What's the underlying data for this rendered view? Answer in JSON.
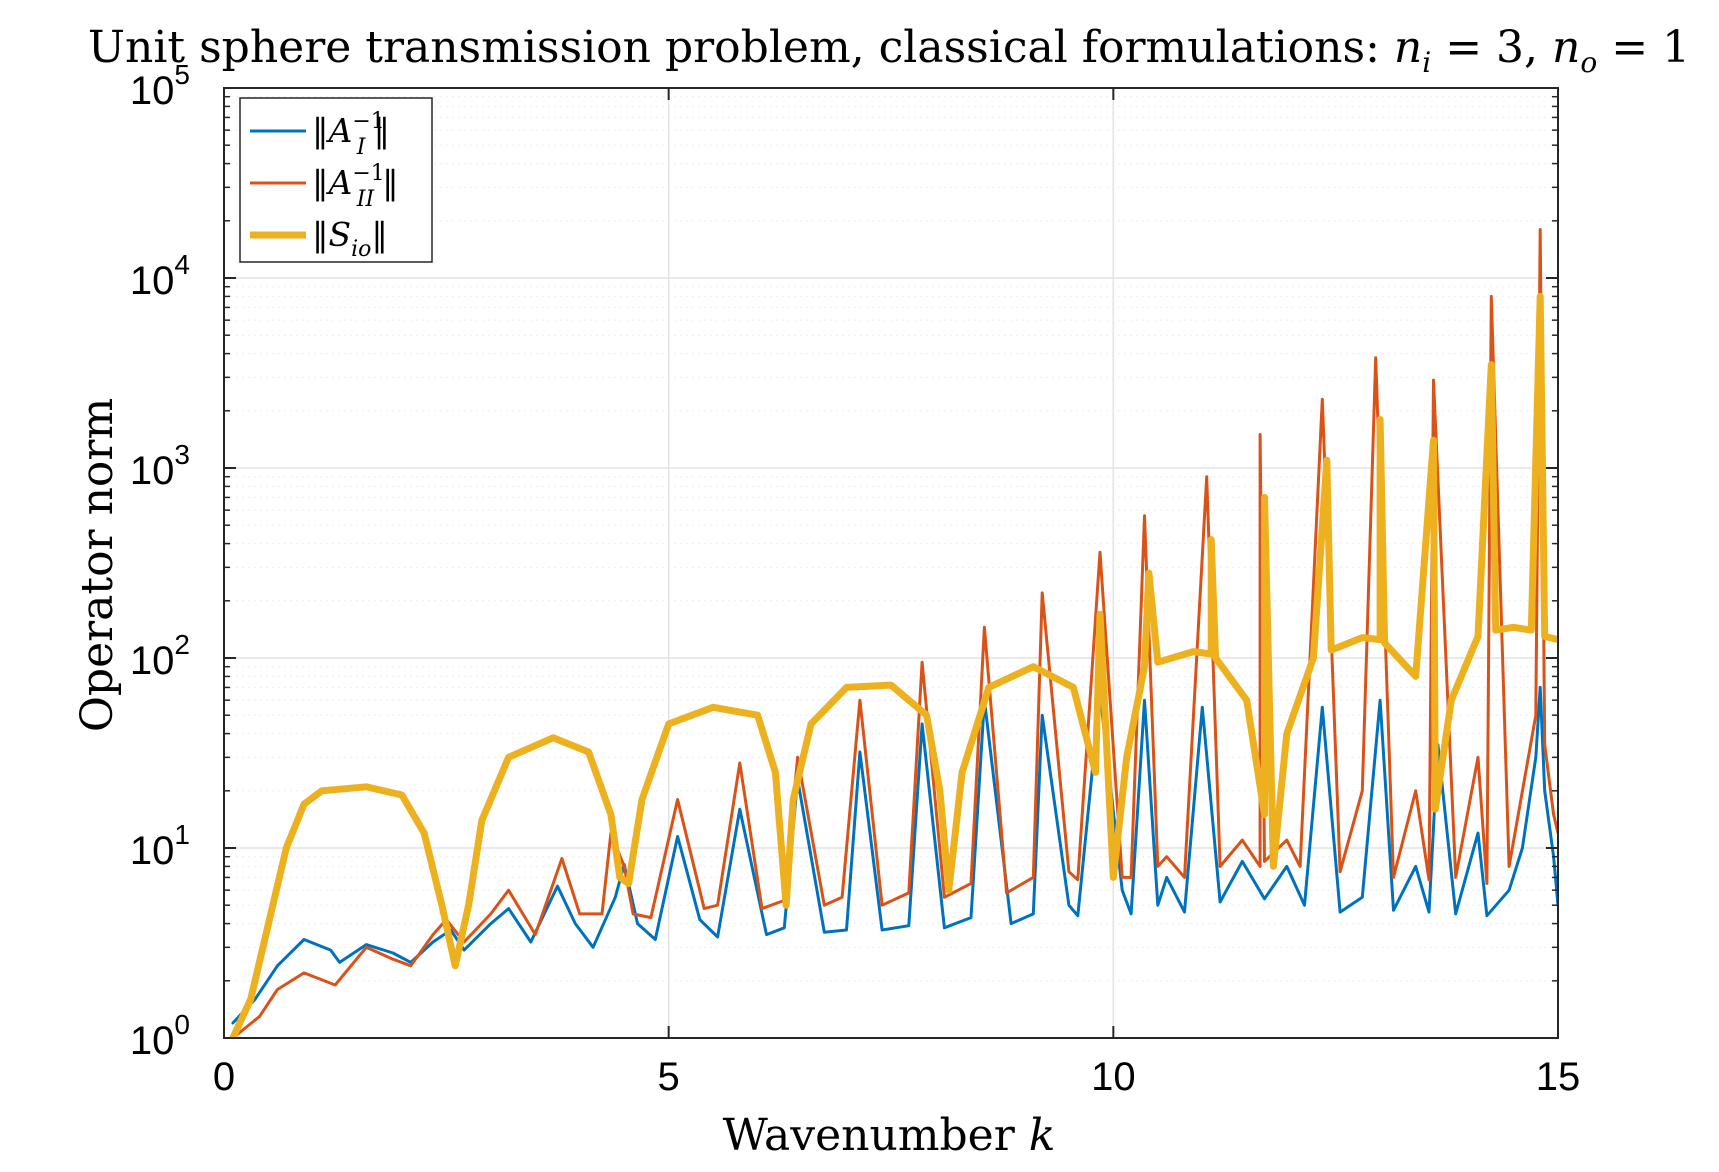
{
  "chart_data": {
    "type": "line",
    "title": "Unit sphere transmission problem, classical formulations: n_i = 3, n_o = 1",
    "title_main": "Unit sphere transmission problem, classical formulations: ",
    "title_ni_var": "n",
    "title_ni_sub": "i",
    "title_ni_eq": " = 3, ",
    "title_no_var": "n",
    "title_no_sub": "o",
    "title_no_eq": " = 1",
    "xlabel": "Wavenumber k",
    "xlabel_main": "Wavenumber ",
    "xlabel_var": "k",
    "ylabel": "Operator norm",
    "xlim": [
      0,
      15
    ],
    "ylim": [
      1,
      100000
    ],
    "yscale": "log",
    "grid": true,
    "legend_position": "top-left",
    "x_ticks": [
      0,
      5,
      10,
      15
    ],
    "x_tick_labels": [
      "0",
      "5",
      "10",
      "15"
    ],
    "y_ticks": [
      1,
      10,
      100,
      1000,
      10000,
      100000
    ],
    "y_tick_exponents": [
      "0",
      "1",
      "2",
      "3",
      "4",
      "5"
    ],
    "y_tick_base": "10",
    "series": [
      {
        "name": "‖A_I^{-1}‖",
        "color": "#0072BD",
        "legend": {
          "pre": "‖",
          "var": "A",
          "sub": "I",
          "sup": "−1",
          "post": "‖"
        },
        "points": [
          [
            0.1,
            1.2
          ],
          [
            0.35,
            1.6
          ],
          [
            0.6,
            2.4
          ],
          [
            0.9,
            3.3
          ],
          [
            1.2,
            2.9
          ],
          [
            1.3,
            2.5
          ],
          [
            1.6,
            3.1
          ],
          [
            1.9,
            2.8
          ],
          [
            2.1,
            2.5
          ],
          [
            2.35,
            3.2
          ],
          [
            2.55,
            3.7
          ],
          [
            2.7,
            2.9
          ],
          [
            3.0,
            4.0
          ],
          [
            3.2,
            4.8
          ],
          [
            3.45,
            3.2
          ],
          [
            3.75,
            6.3
          ],
          [
            3.95,
            4.0
          ],
          [
            4.15,
            3.0
          ],
          [
            4.4,
            5.5
          ],
          [
            4.5,
            8.2
          ],
          [
            4.65,
            4.0
          ],
          [
            4.85,
            3.3
          ],
          [
            5.1,
            11.5
          ],
          [
            5.35,
            4.2
          ],
          [
            5.55,
            3.4
          ],
          [
            5.8,
            16.0
          ],
          [
            6.1,
            3.5
          ],
          [
            6.3,
            3.8
          ],
          [
            6.45,
            23.0
          ],
          [
            6.75,
            3.6
          ],
          [
            7.0,
            3.7
          ],
          [
            7.15,
            32.0
          ],
          [
            7.4,
            3.7
          ],
          [
            7.7,
            3.9
          ],
          [
            7.85,
            45.0
          ],
          [
            8.1,
            3.8
          ],
          [
            8.4,
            4.3
          ],
          [
            8.55,
            60.0
          ],
          [
            8.85,
            4.0
          ],
          [
            9.1,
            4.5
          ],
          [
            9.2,
            50.0
          ],
          [
            9.5,
            5.0
          ],
          [
            9.6,
            4.4
          ],
          [
            9.85,
            65.0
          ],
          [
            10.1,
            6.0
          ],
          [
            10.2,
            4.5
          ],
          [
            10.35,
            60.0
          ],
          [
            10.5,
            5.0
          ],
          [
            10.6,
            7.0
          ],
          [
            10.8,
            4.6
          ],
          [
            11.0,
            55.0
          ],
          [
            11.2,
            5.2
          ],
          [
            11.45,
            8.5
          ],
          [
            11.7,
            5.4
          ],
          [
            11.95,
            8.0
          ],
          [
            12.15,
            5.0
          ],
          [
            12.35,
            55.0
          ],
          [
            12.55,
            4.6
          ],
          [
            12.8,
            5.5
          ],
          [
            13.0,
            60.0
          ],
          [
            13.15,
            4.7
          ],
          [
            13.4,
            8.0
          ],
          [
            13.55,
            4.6
          ],
          [
            13.65,
            35.0
          ],
          [
            13.85,
            4.5
          ],
          [
            14.1,
            12.0
          ],
          [
            14.2,
            4.4
          ],
          [
            14.45,
            6.0
          ],
          [
            14.6,
            10.0
          ],
          [
            14.75,
            30.0
          ],
          [
            14.8,
            70.0
          ],
          [
            14.85,
            20.0
          ],
          [
            14.95,
            9.0
          ],
          [
            15.0,
            5.0
          ]
        ]
      },
      {
        "name": "‖A_II^{-1}‖",
        "color": "#D95319",
        "legend": {
          "pre": "‖",
          "var": "A",
          "sub": "II",
          "sup": "−1",
          "post": "‖"
        },
        "points": [
          [
            0.1,
            1.0
          ],
          [
            0.4,
            1.3
          ],
          [
            0.6,
            1.8
          ],
          [
            0.9,
            2.2
          ],
          [
            1.25,
            1.9
          ],
          [
            1.6,
            3.0
          ],
          [
            1.9,
            2.6
          ],
          [
            2.1,
            2.4
          ],
          [
            2.35,
            3.5
          ],
          [
            2.5,
            4.2
          ],
          [
            2.7,
            3.2
          ],
          [
            3.0,
            4.5
          ],
          [
            3.2,
            6.0
          ],
          [
            3.5,
            3.5
          ],
          [
            3.8,
            8.8
          ],
          [
            4.0,
            4.5
          ],
          [
            4.25,
            4.5
          ],
          [
            4.35,
            12.0
          ],
          [
            4.5,
            8.0
          ],
          [
            4.6,
            4.5
          ],
          [
            4.8,
            4.3
          ],
          [
            5.1,
            18.0
          ],
          [
            5.4,
            4.8
          ],
          [
            5.55,
            5.0
          ],
          [
            5.8,
            28.0
          ],
          [
            6.05,
            4.8
          ],
          [
            6.3,
            5.3
          ],
          [
            6.45,
            30.0
          ],
          [
            6.75,
            5.0
          ],
          [
            6.95,
            5.5
          ],
          [
            7.15,
            60.0
          ],
          [
            7.4,
            5.0
          ],
          [
            7.7,
            5.8
          ],
          [
            7.85,
            95.0
          ],
          [
            8.1,
            5.5
          ],
          [
            8.4,
            6.5
          ],
          [
            8.55,
            145.0
          ],
          [
            8.8,
            5.8
          ],
          [
            9.1,
            7.0
          ],
          [
            9.2,
            220.0
          ],
          [
            9.5,
            7.5
          ],
          [
            9.6,
            6.8
          ],
          [
            9.85,
            360.0
          ],
          [
            10.1,
            7.0
          ],
          [
            10.2,
            7.0
          ],
          [
            10.35,
            560.0
          ],
          [
            10.5,
            8.0
          ],
          [
            10.6,
            9.0
          ],
          [
            10.8,
            7.0
          ],
          [
            11.05,
            900.0
          ],
          [
            11.2,
            8.0
          ],
          [
            11.45,
            11.0
          ],
          [
            11.65,
            8.0
          ],
          [
            11.65,
            1500.0
          ],
          [
            11.7,
            8.5
          ],
          [
            11.95,
            11.0
          ],
          [
            12.1,
            8.0
          ],
          [
            12.35,
            2300.0
          ],
          [
            12.55,
            7.5
          ],
          [
            12.8,
            20.0
          ],
          [
            12.95,
            3800.0
          ],
          [
            13.15,
            7.0
          ],
          [
            13.4,
            20.0
          ],
          [
            13.55,
            6.8
          ],
          [
            13.6,
            2900.0
          ],
          [
            13.85,
            7.0
          ],
          [
            14.1,
            30.0
          ],
          [
            14.2,
            6.5
          ],
          [
            14.25,
            8000.0
          ],
          [
            14.45,
            8.0
          ],
          [
            14.75,
            50.0
          ],
          [
            14.8,
            18000.0
          ],
          [
            14.85,
            35.0
          ],
          [
            14.95,
            15.0
          ],
          [
            15.0,
            12.0
          ]
        ]
      },
      {
        "name": "‖S_io‖",
        "color": "#EDB120",
        "legend": {
          "pre": "‖",
          "var": "S",
          "sub": "io",
          "sup": "",
          "post": "‖"
        },
        "points": [
          [
            0.1,
            1.0
          ],
          [
            0.3,
            1.6
          ],
          [
            0.5,
            4.0
          ],
          [
            0.7,
            10.0
          ],
          [
            0.9,
            17.0
          ],
          [
            1.1,
            20.0
          ],
          [
            1.6,
            21.0
          ],
          [
            2.0,
            19.0
          ],
          [
            2.25,
            12.0
          ],
          [
            2.45,
            5.0
          ],
          [
            2.6,
            2.4
          ],
          [
            2.75,
            5.0
          ],
          [
            2.9,
            14.0
          ],
          [
            3.2,
            30.0
          ],
          [
            3.7,
            38.0
          ],
          [
            4.1,
            32.0
          ],
          [
            4.35,
            15.0
          ],
          [
            4.45,
            7.0
          ],
          [
            4.55,
            6.5
          ],
          [
            4.7,
            18.0
          ],
          [
            5.0,
            45.0
          ],
          [
            5.5,
            55.0
          ],
          [
            6.0,
            50.0
          ],
          [
            6.2,
            25.0
          ],
          [
            6.32,
            5.0
          ],
          [
            6.4,
            18.0
          ],
          [
            6.6,
            45.0
          ],
          [
            7.0,
            70.0
          ],
          [
            7.5,
            72.0
          ],
          [
            7.9,
            50.0
          ],
          [
            8.05,
            20.0
          ],
          [
            8.15,
            6.0
          ],
          [
            8.3,
            25.0
          ],
          [
            8.6,
            70.0
          ],
          [
            9.1,
            90.0
          ],
          [
            9.55,
            70.0
          ],
          [
            9.8,
            25.0
          ],
          [
            9.85,
            170.0
          ],
          [
            9.95,
            20.0
          ],
          [
            10.0,
            7.0
          ],
          [
            10.15,
            30.0
          ],
          [
            10.35,
            90.0
          ],
          [
            10.4,
            280.0
          ],
          [
            10.5,
            95.0
          ],
          [
            10.9,
            108.0
          ],
          [
            11.1,
            105.0
          ],
          [
            11.1,
            420.0
          ],
          [
            11.15,
            100.0
          ],
          [
            11.5,
            60.0
          ],
          [
            11.7,
            15.0
          ],
          [
            11.7,
            700.0
          ],
          [
            11.8,
            8.0
          ],
          [
            11.95,
            40.0
          ],
          [
            12.25,
            100.0
          ],
          [
            12.4,
            1100.0
          ],
          [
            12.45,
            110.0
          ],
          [
            12.8,
            128.0
          ],
          [
            13.0,
            125.0
          ],
          [
            13.0,
            1800.0
          ],
          [
            13.05,
            120.0
          ],
          [
            13.4,
            80.0
          ],
          [
            13.6,
            1400.0
          ],
          [
            13.62,
            16.0
          ],
          [
            13.8,
            60.0
          ],
          [
            14.1,
            130.0
          ],
          [
            14.25,
            3500.0
          ],
          [
            14.3,
            140.0
          ],
          [
            14.5,
            145.0
          ],
          [
            14.7,
            140.0
          ],
          [
            14.8,
            8000.0
          ],
          [
            14.85,
            130.0
          ],
          [
            15.0,
            125.0
          ]
        ]
      }
    ]
  }
}
